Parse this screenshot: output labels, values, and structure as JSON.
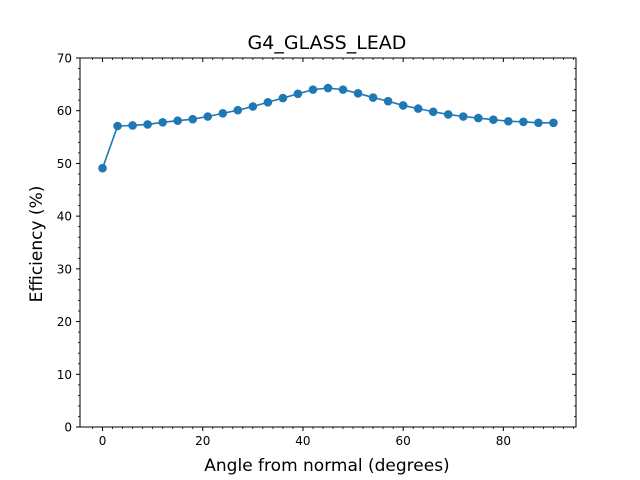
{
  "chart_data": {
    "type": "line",
    "title": "G4_GLASS_LEAD",
    "xlabel": "Angle from normal (degrees)",
    "ylabel": "Efficiency (%)",
    "xlim": [
      -4.5,
      94.5
    ],
    "ylim": [
      0,
      70
    ],
    "xticks": [
      0,
      20,
      40,
      60,
      80
    ],
    "yticks": [
      0,
      10,
      20,
      30,
      40,
      50,
      60,
      70
    ],
    "grid": false,
    "series": [
      {
        "color": "#1f77b4",
        "marker": "circle",
        "x": [
          0,
          3,
          6,
          9,
          12,
          15,
          18,
          21,
          24,
          27,
          30,
          33,
          36,
          39,
          42,
          45,
          48,
          51,
          54,
          57,
          60,
          63,
          66,
          69,
          72,
          75,
          78,
          81,
          84,
          87,
          90
        ],
        "y": [
          49.1,
          57.1,
          57.2,
          57.4,
          57.8,
          58.1,
          58.4,
          58.9,
          59.5,
          60.1,
          60.8,
          61.6,
          62.4,
          63.2,
          64.0,
          64.3,
          64.0,
          63.3,
          62.5,
          61.8,
          61.0,
          60.4,
          59.8,
          59.3,
          58.9,
          58.6,
          58.3,
          58.0,
          57.9,
          57.7,
          57.7
        ]
      }
    ]
  }
}
